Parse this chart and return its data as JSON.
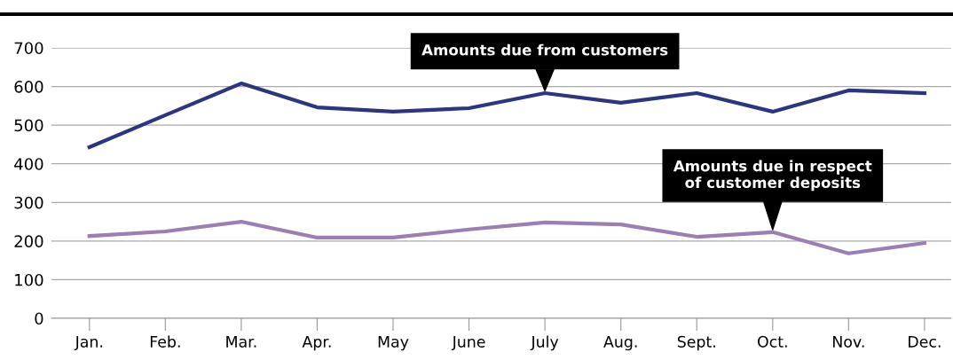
{
  "chart_data": {
    "type": "line",
    "categories": [
      "Jan.",
      "Feb.",
      "Mar.",
      "Apr.",
      "May",
      "June",
      "July",
      "Aug.",
      "Sept.",
      "Oct.",
      "Nov.",
      "Dec."
    ],
    "series": [
      {
        "color": "#2b3580",
        "values": [
          443,
          526,
          608,
          546,
          535,
          544,
          583,
          558,
          583,
          535,
          590,
          583
        ]
      },
      {
        "color": "#9a7fb5",
        "values": [
          213,
          225,
          250,
          209,
          209,
          230,
          248,
          243,
          211,
          223,
          168,
          195
        ]
      }
    ],
    "ylim": [
      0,
      700
    ],
    "yticks": [
      0,
      100,
      200,
      300,
      400,
      500,
      600,
      700
    ],
    "grid": "y",
    "legend": false,
    "marker": "none",
    "line_style": "solid",
    "annotations": [
      {
        "text": "Amounts due from customers",
        "x": "July",
        "y": 583
      },
      {
        "text": "Amounts due in respect\nof customer deposits",
        "x": "Oct.",
        "y": 223
      }
    ]
  }
}
